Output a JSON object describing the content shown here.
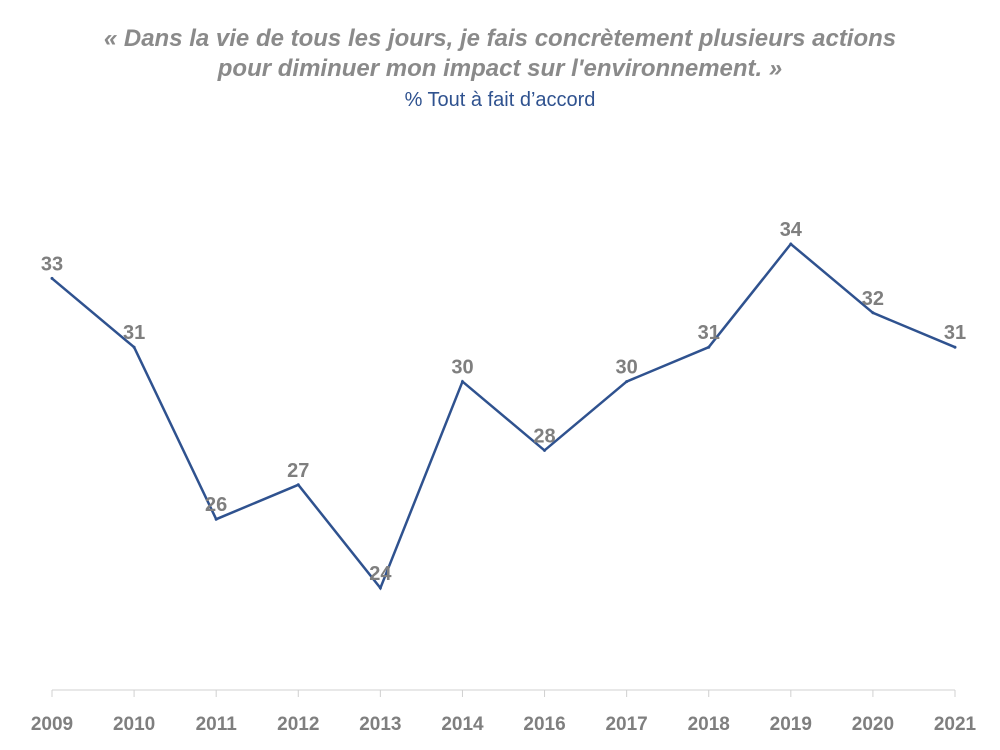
{
  "header": {
    "title_line1": "« Dans la vie de tous les jours, je fais concrètement plusieurs actions",
    "title_line2": "pour diminuer mon impact sur l'environnement. »",
    "subtitle": "% Tout à fait d’accord"
  },
  "colors": {
    "line": "#2f528f",
    "label": "#7f7f7f",
    "title": "#8a8a8a",
    "subtitle": "#2f528f",
    "axis": "#d0d0d0"
  },
  "chart_data": {
    "type": "line",
    "title": "« Dans la vie de tous les jours, je fais concrètement plusieurs actions pour diminuer mon impact sur l'environnement. »",
    "subtitle": "% Tout à fait d’accord",
    "categories": [
      "2009",
      "2010",
      "2011",
      "2012",
      "2013",
      "2014",
      "2016",
      "2017",
      "2018",
      "2019",
      "2020",
      "2021"
    ],
    "series": [
      {
        "name": "% Tout à fait d’accord",
        "values": [
          33,
          31,
          26,
          27,
          24,
          30,
          28,
          30,
          31,
          34,
          32,
          31
        ]
      }
    ],
    "xlabel": "",
    "ylabel": "",
    "ylim": [
      15,
      36
    ],
    "grid": false,
    "legend": "none"
  }
}
